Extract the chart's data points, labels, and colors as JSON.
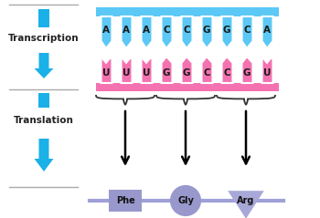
{
  "bg_color": "#ffffff",
  "dna_bases": [
    "A",
    "A",
    "A",
    "C",
    "C",
    "G",
    "G",
    "C",
    "A"
  ],
  "rna_bases": [
    "U",
    "U",
    "U",
    "G",
    "G",
    "C",
    "C",
    "G",
    "U"
  ],
  "dna_bar_color": "#5bc8f5",
  "rna_bar_color": "#f472b0",
  "rna_bg_color": "#f9a8d4",
  "arrow_color": "#1ab0e8",
  "chain_color": "#a0a0d8",
  "brace_color": "#333333",
  "label_transcription": "Transcription",
  "label_translation": "Translation",
  "aa_phe_color": "#9090cc",
  "aa_gly_color": "#9090cc",
  "aa_arg_color": "#a0a0d8",
  "text_color": "#222222"
}
